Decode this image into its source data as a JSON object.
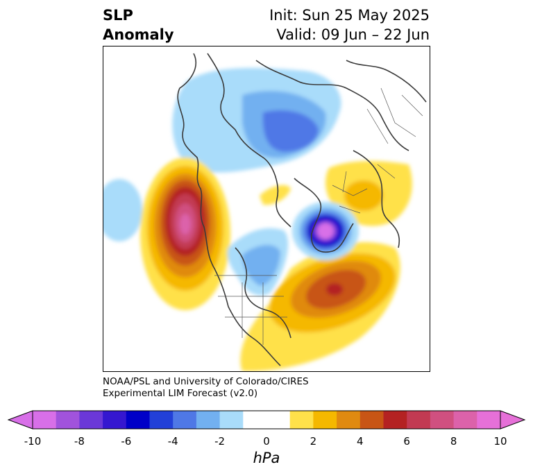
{
  "header": {
    "title_line1": "SLP",
    "title_line2": "Anomaly",
    "init": "Init: Sun 25 May 2025",
    "valid": "Valid: 09 Jun – 22 Jun"
  },
  "credits": {
    "line1": "NOAA/PSL and University of Colorado/CIRES",
    "line2": "Experimental LIM Forecast (v2.0)"
  },
  "colorbar": {
    "label": "hPa",
    "ticks": [
      "-10",
      "-8",
      "-6",
      "-4",
      "-2",
      "0",
      "2",
      "4",
      "6",
      "8",
      "10"
    ],
    "colors": [
      "#d86fe8",
      "#a153dc",
      "#6b38d8",
      "#3517d0",
      "#0000c8",
      "#2240d8",
      "#4f78e6",
      "#72b0f0",
      "#a9dcfa",
      "#ffffff",
      "#ffffff",
      "#ffe14a",
      "#f5b800",
      "#e08a10",
      "#c85515",
      "#b42222",
      "#c23a52",
      "#d05080",
      "#dc62aa",
      "#e670d8"
    ],
    "min_arrow_color": "#d86fe8",
    "max_arrow_color": "#e670d8"
  }
}
